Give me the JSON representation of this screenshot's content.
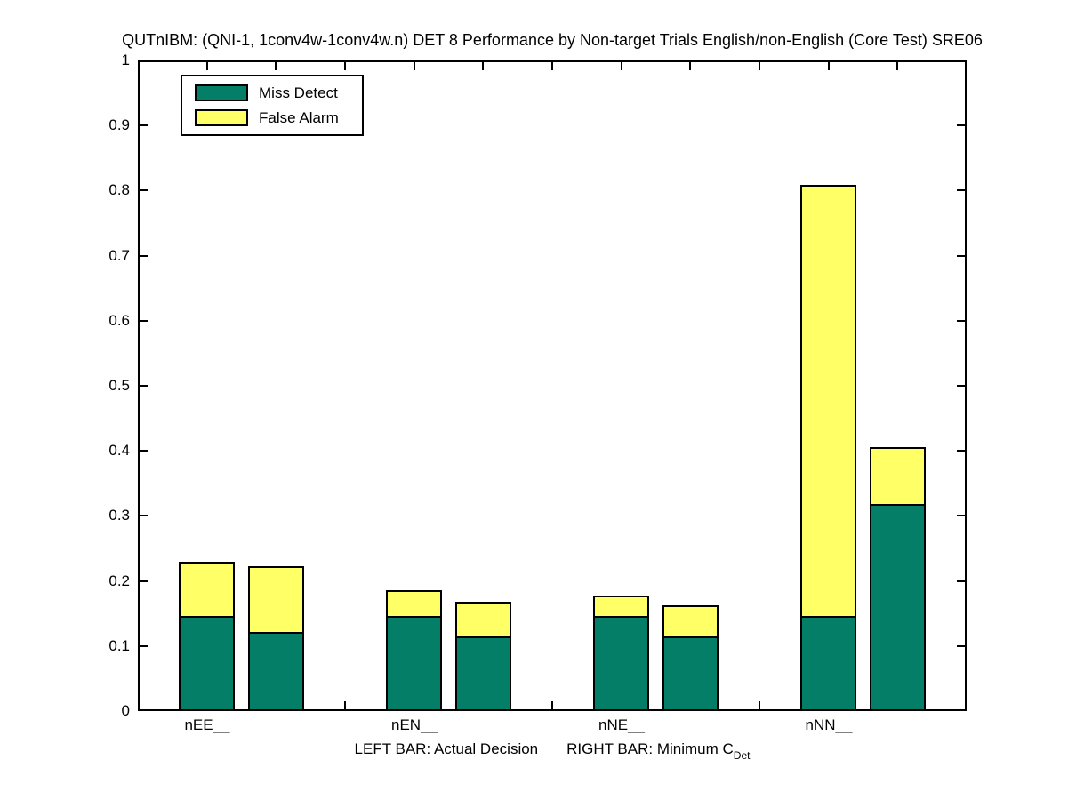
{
  "chart_data": {
    "type": "bar",
    "stacked": true,
    "title": "QUTnIBM: (QNI-1, 1conv4w-1conv4w.n) DET 8 Performance by Non-target Trials English/non-English (Core Test) SRE06",
    "categories": [
      "nEE__",
      "nEN__",
      "nNE__",
      "nNN__"
    ],
    "bar_meaning": {
      "left_bar": "Actual Decision",
      "right_bar": "Minimum C_Det"
    },
    "xlabel_left": "LEFT BAR: Actual Decision",
    "xlabel_right": "RIGHT BAR: Minimum C",
    "xlabel_subscript": "Det",
    "series": [
      {
        "name": "Miss Detect",
        "color": "#057E68",
        "left_values": [
          0.146,
          0.146,
          0.146,
          0.146
        ],
        "right_values": [
          0.122,
          0.115,
          0.115,
          0.318
        ]
      },
      {
        "name": "False Alarm",
        "color": "#FFFF66",
        "left_values": [
          0.083,
          0.04,
          0.031,
          0.662
        ],
        "right_values": [
          0.101,
          0.053,
          0.048,
          0.087
        ]
      }
    ],
    "stack_totals_left": [
      0.229,
      0.186,
      0.177,
      0.808
    ],
    "stack_totals_right": [
      0.223,
      0.168,
      0.163,
      0.405
    ],
    "ylim": [
      0,
      1
    ],
    "ytick_labels": [
      "0",
      "0.1",
      "0.2",
      "0.3",
      "0.4",
      "0.5",
      "0.6",
      "0.7",
      "0.8",
      "0.9",
      "1"
    ],
    "grid": false,
    "legend_position": "upper-left",
    "legend": [
      "Miss Detect",
      "False Alarm"
    ]
  }
}
